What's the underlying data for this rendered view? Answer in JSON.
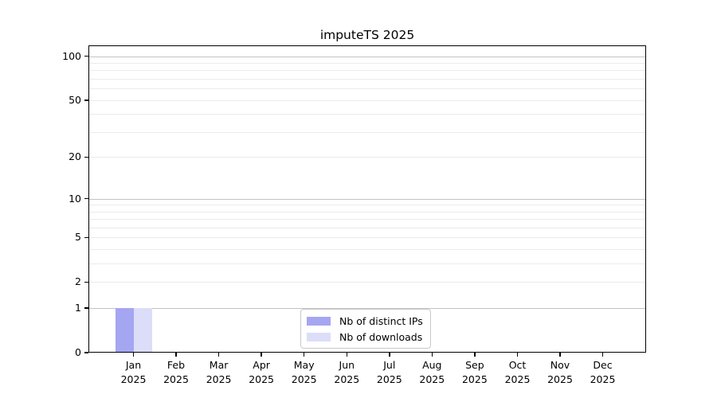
{
  "chart_data": {
    "type": "bar",
    "title": "imputeTS 2025",
    "x_year": "2025",
    "categories": [
      "Jan",
      "Feb",
      "Mar",
      "Apr",
      "May",
      "Jun",
      "Jul",
      "Aug",
      "Sep",
      "Oct",
      "Nov",
      "Dec"
    ],
    "series": [
      {
        "name": "Nb of distinct IPs",
        "color": "#a5a6f1",
        "values": [
          1,
          0,
          0,
          0,
          0,
          0,
          0,
          0,
          0,
          0,
          0,
          0
        ]
      },
      {
        "name": "Nb of downloads",
        "color": "#dcddf9",
        "values": [
          1,
          0,
          0,
          0,
          0,
          0,
          0,
          0,
          0,
          0,
          0,
          0
        ]
      }
    ],
    "y_axis": {
      "scale": "log1p",
      "tick_values": [
        0,
        1,
        2,
        5,
        10,
        20,
        50,
        100
      ],
      "major_gridlines": [
        1,
        10,
        100
      ],
      "minor_gridlines": [
        2,
        3,
        4,
        5,
        6,
        7,
        8,
        9,
        20,
        30,
        40,
        50,
        60,
        70,
        80,
        90
      ],
      "ylim": [
        0,
        100
      ]
    },
    "legend": {
      "position": "inside-bottom-center",
      "entries": [
        "Nb of distinct IPs",
        "Nb of downloads"
      ]
    },
    "colors": {
      "major_grid": "#c3c3c3",
      "minor_grid": "#ebebeb",
      "axis": "#000000",
      "background": "#ffffff"
    }
  }
}
